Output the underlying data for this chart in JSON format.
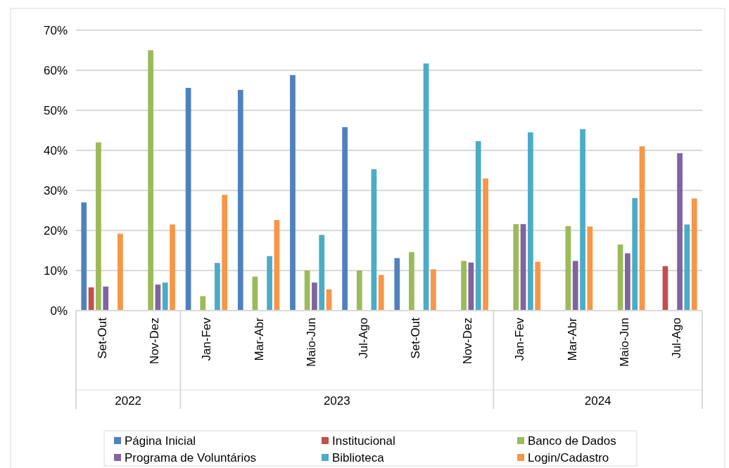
{
  "chart_data": {
    "type": "bar",
    "categories": [
      "Set-Out",
      "Nov-Dez",
      "Jan-Fev",
      "Mar-Abr",
      "Maio-Jun",
      "Jul-Ago",
      "Set-Out",
      "Nov-Dez",
      "Jan-Fev",
      "Mar-Abr",
      "Maio-Jun",
      "Jul-Ago"
    ],
    "series": [
      {
        "name": "Página Inicial",
        "color": "#4f81bd",
        "values": [
          27,
          null,
          55.6,
          55.1,
          58.8,
          45.8,
          13.1,
          null,
          null,
          null,
          null,
          null
        ]
      },
      {
        "name": "Institucional",
        "color": "#c0504d",
        "values": [
          5.8,
          null,
          null,
          null,
          null,
          null,
          null,
          null,
          null,
          null,
          null,
          11.1
        ]
      },
      {
        "name": "Banco de Dados",
        "color": "#9bbb59",
        "values": [
          42,
          65,
          3.6,
          8.5,
          10,
          10,
          14.6,
          12.4,
          21.6,
          21.1,
          16.5,
          null
        ]
      },
      {
        "name": "Programa de Voluntários",
        "color": "#8064a2",
        "values": [
          6,
          6.5,
          null,
          null,
          7,
          null,
          null,
          12,
          21.6,
          12.4,
          14.3,
          39.3
        ]
      },
      {
        "name": "Biblioteca",
        "color": "#4bacc6",
        "values": [
          null,
          7,
          11.9,
          13.6,
          18.9,
          35.3,
          61.7,
          42.3,
          44.5,
          45.3,
          28.1,
          21.5
        ]
      },
      {
        "name": "Login/Cadastro",
        "color": "#f79646",
        "values": [
          19.2,
          21.5,
          28.9,
          22.6,
          5.3,
          8.9,
          10.3,
          33,
          12.2,
          21,
          41,
          28
        ]
      }
    ],
    "ylim": [
      0,
      70
    ],
    "yticks": [
      {
        "value": 0,
        "label": "0%"
      },
      {
        "value": 10,
        "label": "10%"
      },
      {
        "value": 20,
        "label": "20%"
      },
      {
        "value": 30,
        "label": "30%"
      },
      {
        "value": 40,
        "label": "40%"
      },
      {
        "value": 50,
        "label": "50%"
      },
      {
        "value": 60,
        "label": "60%"
      },
      {
        "value": 70,
        "label": "70%"
      }
    ],
    "grid": "y",
    "legend": "bottom",
    "annotations": [
      "2022",
      "2023",
      "2024"
    ]
  }
}
